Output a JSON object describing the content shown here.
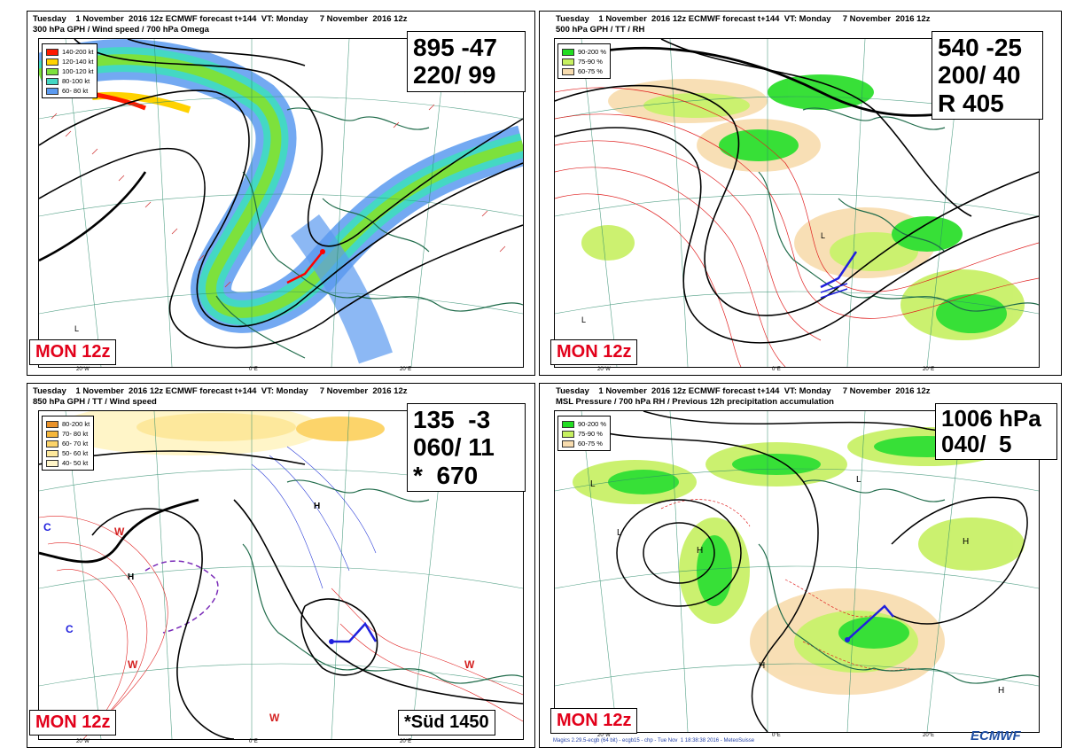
{
  "panels": [
    {
      "header_line1": "Tuesday    1 November  2016 12z ECMWF forecast t+144  VT: Monday     7 November  2016 12z",
      "header_line2": "300 hPa GPH / Wind speed / 700 hPa Omega",
      "legend": [
        {
          "label": "140-200 kt",
          "color": "#ff1a00"
        },
        {
          "label": "120-140 kt",
          "color": "#ffd200"
        },
        {
          "label": "100-120 kt",
          "color": "#7de13c"
        },
        {
          "label": "80-100 kt",
          "color": "#44d8c4"
        },
        {
          "label": "60- 80 kt",
          "color": "#5b9af0"
        }
      ],
      "values": [
        "895 -47",
        "220/ 99"
      ],
      "tag": "MON 12z",
      "lon_labels": [
        "20°W",
        "0°E",
        "20°E"
      ]
    },
    {
      "header_line1": "Tuesday    1 November  2016 12z ECMWF forecast t+144  VT: Monday     7 November  2016 12z",
      "header_line2": "500 hPa GPH / TT / RH",
      "legend": [
        {
          "label": "90-200 %",
          "color": "#22dd22"
        },
        {
          "label": "75-90 %",
          "color": "#c6f060"
        },
        {
          "label": "60-75 %",
          "color": "#f8dcae"
        }
      ],
      "values": [
        "540 -25",
        "200/ 40",
        "R 405"
      ],
      "tag": "MON 12z",
      "lon_labels": [
        "20°W",
        "0°E",
        "20°E"
      ]
    },
    {
      "header_line1": "Tuesday    1 November  2016 12z ECMWF forecast t+144  VT: Monday     7 November  2016 12z",
      "header_line2": "850 hPa GPH / TT / Wind speed",
      "legend": [
        {
          "label": "80-200 kt",
          "color": "#e9922a"
        },
        {
          "label": "70- 80 kt",
          "color": "#f5b73c"
        },
        {
          "label": "60- 70 kt",
          "color": "#fcd46a"
        },
        {
          "label": "50- 60 kt",
          "color": "#fde89c"
        },
        {
          "label": "40- 50 kt",
          "color": "#fff5c8"
        }
      ],
      "values": [
        "135  -3",
        "060/ 11",
        "*  670"
      ],
      "tag": "MON 12z",
      "extra": "*Süd 1450",
      "lon_labels": [
        "20°W",
        "0°E",
        "20°E"
      ]
    },
    {
      "header_line1": "Tuesday    1 November  2016 12z ECMWF forecast t+144  VT: Monday     7 November  2016 12z",
      "header_line2": "MSL Pressure / 700 hPa RH / Previous 12h precipitation accumulation",
      "legend": [
        {
          "label": "90-200 %",
          "color": "#22dd22"
        },
        {
          "label": "75-90 %",
          "color": "#c6f060"
        },
        {
          "label": "60-75 %",
          "color": "#f8dcae"
        }
      ],
      "values": [
        "1006 hPa",
        "040/  5"
      ],
      "tag": "MON 12z",
      "lon_labels": [
        "20°W",
        "0°E",
        "20°E"
      ]
    }
  ],
  "footer": "Magics 2.29.5-ecgb (64 bit) - ecgb15 - chp - Tue Nov  1 18:38:38 2016 - MeteoSuisse",
  "brand": "ECMWF"
}
